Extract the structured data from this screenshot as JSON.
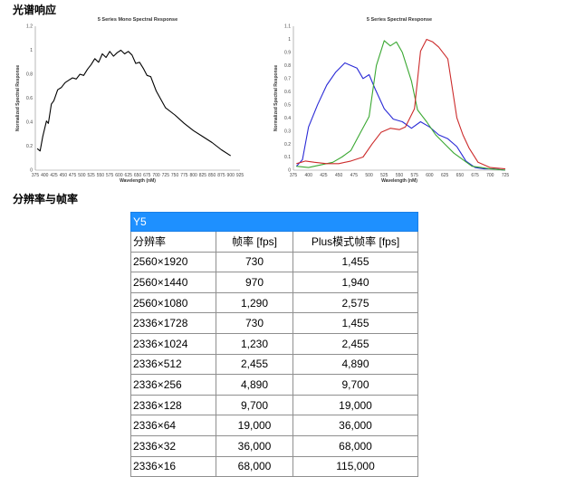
{
  "headings": {
    "spectral": "光谱响应",
    "resolution": "分辨率与帧率"
  },
  "chart_data": [
    {
      "type": "line",
      "title": "5 Series Mono Spectral Response",
      "xlabel": "Wavelength (nM)",
      "ylabel": "Normalized Spectral Response",
      "xlim": [
        375,
        925
      ],
      "ylim": [
        0,
        1.2
      ],
      "xticks": [
        375,
        400,
        425,
        450,
        475,
        500,
        525,
        550,
        575,
        600,
        625,
        650,
        675,
        700,
        725,
        750,
        775,
        800,
        825,
        850,
        875,
        900,
        925
      ],
      "yticks": [
        0,
        0.2,
        0.4,
        0.6,
        0.8,
        1,
        1.2
      ],
      "grid": false,
      "legend": "none",
      "series": [
        {
          "color": "#000000",
          "x": [
            380,
            388,
            395,
            405,
            410,
            418,
            425,
            435,
            445,
            455,
            465,
            475,
            485,
            495,
            505,
            515,
            525,
            535,
            545,
            555,
            565,
            575,
            585,
            595,
            605,
            615,
            625,
            635,
            645,
            655,
            665,
            675,
            685,
            700,
            725,
            750,
            775,
            800,
            825,
            850,
            875,
            900
          ],
          "y": [
            0.18,
            0.16,
            0.28,
            0.41,
            0.39,
            0.55,
            0.58,
            0.67,
            0.69,
            0.73,
            0.75,
            0.77,
            0.76,
            0.8,
            0.79,
            0.84,
            0.88,
            0.93,
            0.9,
            0.97,
            0.94,
            0.99,
            0.95,
            0.98,
            1.0,
            0.97,
            0.99,
            0.96,
            0.89,
            0.9,
            0.85,
            0.79,
            0.78,
            0.66,
            0.52,
            0.46,
            0.39,
            0.33,
            0.28,
            0.23,
            0.17,
            0.12
          ]
        }
      ]
    },
    {
      "type": "line",
      "title": "5 Series Spectral Response",
      "xlabel": "Wavelength (nM)",
      "ylabel": "Normalized Spectral Response",
      "xlim": [
        375,
        725
      ],
      "ylim": [
        0,
        1.1
      ],
      "xticks": [
        375,
        400,
        425,
        450,
        475,
        500,
        525,
        550,
        575,
        600,
        625,
        650,
        675,
        700,
        725
      ],
      "yticks": [
        0,
        0.1,
        0.2,
        0.3,
        0.4,
        0.5,
        0.6,
        0.7,
        0.8,
        0.9,
        1,
        1.1
      ],
      "grid": false,
      "legend": "none",
      "series": [
        {
          "color": "#2a2ad6",
          "x": [
            380,
            390,
            400,
            415,
            430,
            445,
            460,
            470,
            480,
            490,
            500,
            510,
            525,
            540,
            555,
            570,
            585,
            600,
            615,
            630,
            645,
            660,
            675,
            690,
            705,
            725
          ],
          "y": [
            0.03,
            0.08,
            0.33,
            0.5,
            0.65,
            0.75,
            0.82,
            0.8,
            0.78,
            0.7,
            0.73,
            0.62,
            0.47,
            0.39,
            0.37,
            0.32,
            0.37,
            0.33,
            0.27,
            0.24,
            0.18,
            0.07,
            0.02,
            0.01,
            0.01,
            0.0
          ]
        },
        {
          "color": "#3aa832",
          "x": [
            380,
            400,
            420,
            440,
            455,
            470,
            485,
            500,
            512,
            525,
            535,
            545,
            555,
            570,
            580,
            595,
            610,
            625,
            640,
            655,
            670,
            685,
            700,
            725
          ],
          "y": [
            0.03,
            0.02,
            0.04,
            0.06,
            0.1,
            0.15,
            0.28,
            0.41,
            0.8,
            0.99,
            0.95,
            0.98,
            0.9,
            0.68,
            0.46,
            0.37,
            0.27,
            0.2,
            0.13,
            0.08,
            0.03,
            0.02,
            0.01,
            0.0
          ]
        },
        {
          "color": "#cc2b2b",
          "x": [
            380,
            395,
            410,
            430,
            450,
            470,
            490,
            505,
            520,
            535,
            550,
            560,
            575,
            585,
            595,
            605,
            615,
            630,
            645,
            655,
            665,
            680,
            700,
            725
          ],
          "y": [
            0.05,
            0.07,
            0.06,
            0.05,
            0.05,
            0.07,
            0.1,
            0.2,
            0.29,
            0.32,
            0.31,
            0.33,
            0.47,
            0.91,
            1.0,
            0.98,
            0.94,
            0.85,
            0.4,
            0.27,
            0.17,
            0.06,
            0.02,
            0.01
          ]
        }
      ]
    }
  ],
  "table": {
    "title": "Y5",
    "headers": [
      "分辨率",
      "帧率 [fps]",
      "Plus模式帧率 [fps]"
    ],
    "rows": [
      [
        "2560×1920",
        "730",
        "1,455"
      ],
      [
        "2560×1440",
        "970",
        "1,940"
      ],
      [
        "2560×1080",
        "1,290",
        "2,575"
      ],
      [
        "2336×1728",
        "730",
        "1,455"
      ],
      [
        "2336×1024",
        "1,230",
        "2,455"
      ],
      [
        "2336×512",
        "2,455",
        "4,890"
      ],
      [
        "2336×256",
        "4,890",
        "9,700"
      ],
      [
        "2336×128",
        "9,700",
        "19,000"
      ],
      [
        "2336×64",
        "19,000",
        "36,000"
      ],
      [
        "2336×32",
        "36,000",
        "68,000"
      ],
      [
        "2336×16",
        "68,000",
        "115,000"
      ]
    ]
  }
}
